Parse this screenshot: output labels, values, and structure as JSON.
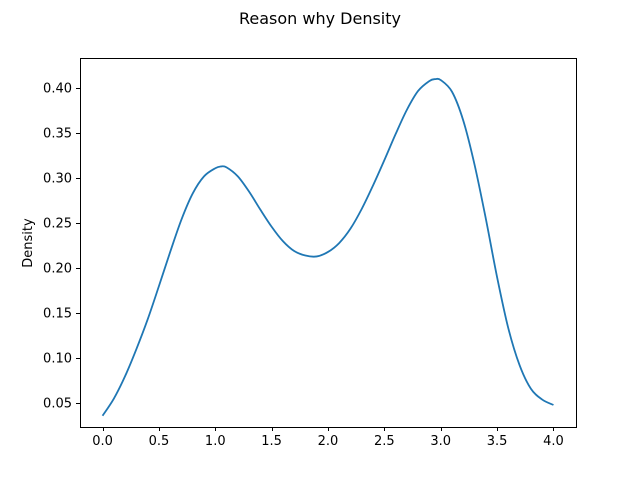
{
  "chart_data": {
    "type": "line",
    "title": "Reason why Density",
    "xlabel": "",
    "ylabel": "Density",
    "xlim": [
      -0.2,
      4.2
    ],
    "ylim": [
      0.0235,
      0.4335
    ],
    "xticks": [
      0.0,
      0.5,
      1.0,
      1.5,
      2.0,
      2.5,
      3.0,
      3.5,
      4.0
    ],
    "xtick_labels": [
      "0.0",
      "0.5",
      "1.0",
      "1.5",
      "2.0",
      "2.5",
      "3.0",
      "3.5",
      "4.0"
    ],
    "yticks": [
      0.05,
      0.1,
      0.15,
      0.2,
      0.25,
      0.3,
      0.35,
      0.4
    ],
    "ytick_labels": [
      "0.05",
      "0.10",
      "0.15",
      "0.20",
      "0.25",
      "0.30",
      "0.35",
      "0.40"
    ],
    "grid": false,
    "series": [
      {
        "color": "#1f77b4",
        "x": [
          0.0,
          0.1,
          0.2,
          0.3,
          0.4,
          0.5,
          0.6,
          0.7,
          0.8,
          0.9,
          1.0,
          1.05,
          1.1,
          1.2,
          1.3,
          1.4,
          1.5,
          1.6,
          1.7,
          1.8,
          1.9,
          2.0,
          2.1,
          2.2,
          2.3,
          2.4,
          2.5,
          2.6,
          2.7,
          2.8,
          2.9,
          2.95,
          3.0,
          3.1,
          3.2,
          3.3,
          3.4,
          3.5,
          3.6,
          3.7,
          3.8,
          3.9,
          4.0
        ],
        "y": [
          0.036,
          0.055,
          0.08,
          0.11,
          0.143,
          0.18,
          0.218,
          0.254,
          0.283,
          0.302,
          0.311,
          0.313,
          0.312,
          0.302,
          0.285,
          0.265,
          0.246,
          0.23,
          0.219,
          0.214,
          0.213,
          0.218,
          0.228,
          0.244,
          0.266,
          0.292,
          0.32,
          0.349,
          0.376,
          0.397,
          0.408,
          0.41,
          0.409,
          0.396,
          0.364,
          0.315,
          0.255,
          0.19,
          0.133,
          0.092,
          0.066,
          0.054,
          0.048
        ]
      }
    ]
  }
}
